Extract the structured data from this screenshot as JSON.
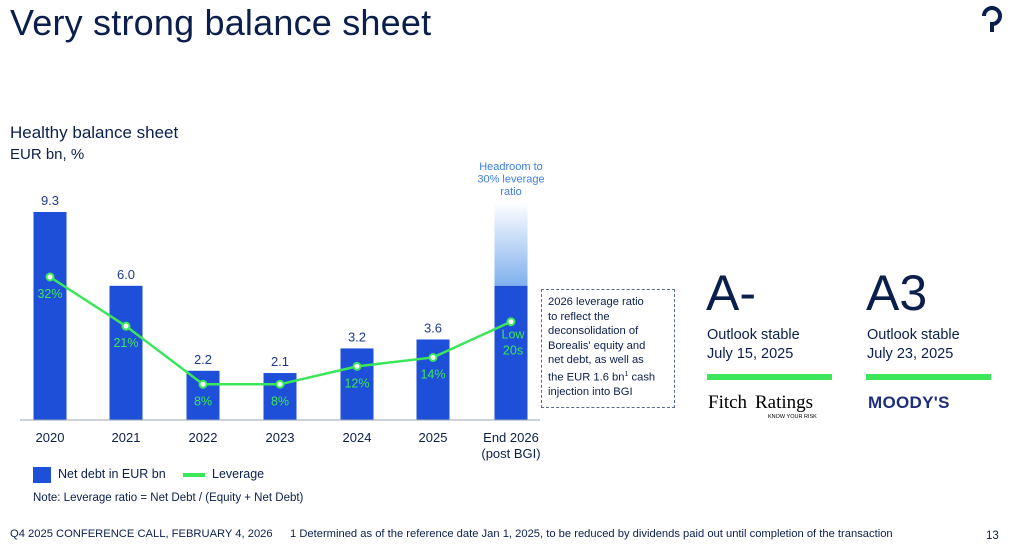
{
  "page": {
    "title": "Very strong balance sheet",
    "footer_left": "Q4 2025 CONFERENCE CALL, FEBRUARY 4, 2026",
    "footnote": "1 Determined as of the reference date Jan 1, 2025, to be reduced by dividends paid out until completion of the transaction",
    "page_number": "13"
  },
  "colors": {
    "bar": "#1d4fd8",
    "leverage_line": "#3ce65a",
    "headroom": "#7fb0ee",
    "text": "#0b1f4d"
  },
  "chart_data": {
    "type": "bar",
    "title": "Healthy balance sheet",
    "subtitle": "EUR bn, %",
    "categories": [
      "2020",
      "2021",
      "2022",
      "2023",
      "2024",
      "2025",
      "End 2026"
    ],
    "categories_line2": [
      "",
      "",
      "",
      "",
      "",
      "",
      "(post BGI)"
    ],
    "series": [
      {
        "name": "Net debt in EUR bn",
        "type": "bar",
        "values": [
          9.3,
          6.0,
          2.2,
          2.1,
          3.2,
          3.6,
          6.0
        ],
        "value_labels": [
          "9.3",
          "6.0",
          "2.2",
          "2.1",
          "3.2",
          "3.6",
          ""
        ]
      },
      {
        "name": "Leverage",
        "type": "line",
        "values": [
          32,
          21,
          8,
          8,
          12,
          14,
          22
        ],
        "value_labels": [
          "32%",
          "21%",
          "8%",
          "8%",
          "12%",
          "14%",
          "Low 20s"
        ]
      }
    ],
    "headroom": {
      "category": "End 2026",
      "top_value": 9.3,
      "label_lines": [
        "Headroom to",
        "30% leverage",
        "ratio"
      ]
    },
    "ylim_bar": [
      0,
      9.3
    ],
    "ylim_line": [
      0,
      45
    ],
    "legend": "bottom-left",
    "grid": false,
    "note": "Note: Leverage ratio = Net Debt / (Equity + Net Debt)",
    "annotation_lines": [
      "2026 leverage ratio",
      "to reflect the",
      "deconsolidation of",
      "Borealis' equity and",
      "net debt, as well as",
      "the EUR 1.6 bn",
      "injection into BGI"
    ],
    "annotation_sup": "1",
    "annotation_sup_after": " cash"
  },
  "ratings": [
    {
      "grade": "A-",
      "outlook": "Outlook stable",
      "date": "July 15, 2025",
      "agency": "FitchRatings",
      "agency_tagline": "KNOW YOUR RISK"
    },
    {
      "grade": "A3",
      "outlook": "Outlook stable",
      "date": "July 23, 2025",
      "agency": "MOODY'S"
    }
  ]
}
